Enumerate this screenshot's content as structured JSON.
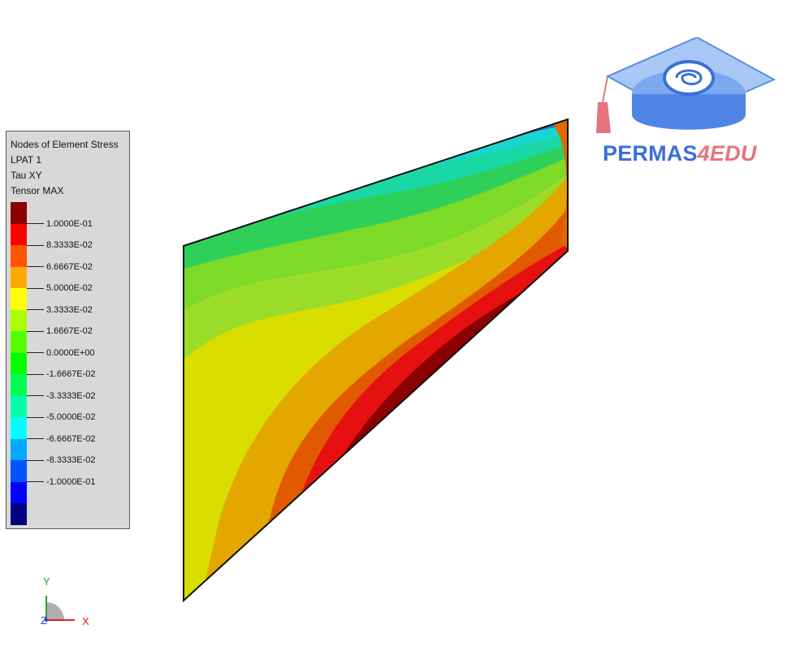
{
  "legend": {
    "title": "Nodes of Element Stress",
    "load_pattern": "LPAT 1",
    "component": "Tau XY",
    "type": "Tensor MAX",
    "colors": [
      "#8b0000",
      "#ff0000",
      "#ff5500",
      "#ffaa00",
      "#ffff00",
      "#aaff00",
      "#55ff00",
      "#00ff00",
      "#00ff55",
      "#00ffaa",
      "#00ffff",
      "#00aaff",
      "#0055ff",
      "#0000ff",
      "#000080"
    ],
    "values": [
      "1.0000E-01",
      "8.3333E-02",
      "6.6667E-02",
      "5.0000E-02",
      "3.3333E-02",
      "1.6667E-02",
      "0.0000E+00",
      "-1.6667E-02",
      "-3.3333E-02",
      "-5.0000E-02",
      "-6.6667E-02",
      "-8.3333E-02",
      "-1.0000E-01"
    ]
  },
  "logo": {
    "text_main": "PERMAS",
    "text_accent": "4EDU"
  },
  "triad": {
    "y_label": "Y",
    "z_label": "Z",
    "x_label": "X"
  },
  "colors": {
    "logo_blue": "#3b6fd8",
    "logo_pink": "#e6737e"
  }
}
